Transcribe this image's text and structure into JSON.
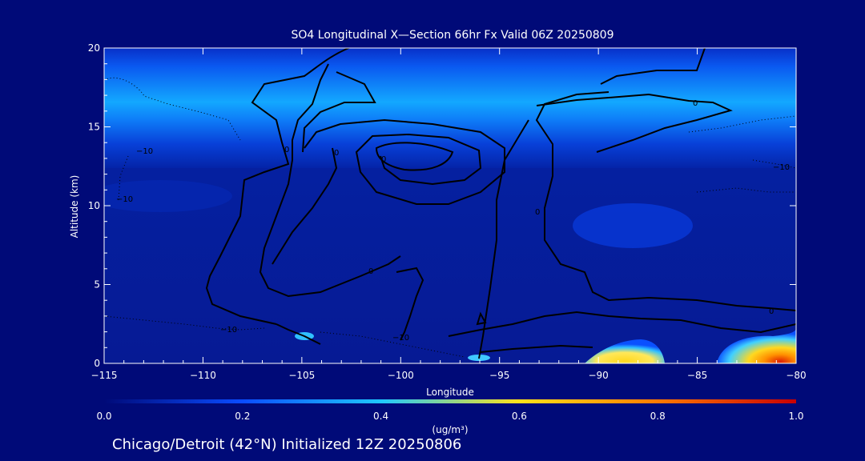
{
  "colors": {
    "background": "#000a78",
    "text": "#ffffff",
    "contour": "#000000"
  },
  "chart_data": {
    "type": "heatmap",
    "title": "SO4 Longitudinal X—Section 66hr  Fx Valid 06Z 20250809",
    "xlabel": "Longitude",
    "ylabel": "Altitude (km)",
    "xlim": [
      -115,
      -80
    ],
    "ylim": [
      0,
      20
    ],
    "x_ticks": [
      -115,
      -110,
      -105,
      -100,
      -95,
      -90,
      -85,
      -80
    ],
    "x_tick_labels": [
      "−115",
      "−110",
      "−105",
      "−100",
      "−95",
      "−90",
      "−85",
      "−80"
    ],
    "y_ticks": [
      0,
      5,
      10,
      15,
      20
    ],
    "y_tick_labels": [
      "0",
      "5",
      "10",
      "15",
      "20"
    ],
    "colorbar": {
      "range": [
        0.0,
        1.0
      ],
      "ticks": [
        0.0,
        0.2,
        0.4,
        0.6,
        0.8,
        1.0
      ],
      "tick_labels": [
        "0.0",
        "0.2",
        "0.4",
        "0.6",
        "0.8",
        "1.0"
      ],
      "units": "(ug/m³)",
      "colors": [
        "#000a78",
        "#0a4cff",
        "#1fc8ff",
        "#ffe21a",
        "#ff7a00",
        "#c80000"
      ]
    },
    "contour_labels": [
      "0",
      "0",
      "0",
      "0",
      "0",
      "0",
      "0",
      "−10",
      "−10",
      "−10",
      "−10",
      "−10"
    ],
    "features": [
      {
        "desc": "upper haze band",
        "lon": [
          -115,
          -80
        ],
        "alt": [
          13.5,
          18
        ],
        "value": 0.25
      },
      {
        "desc": "surface plume",
        "lon": [
          -91,
          -87
        ],
        "alt": [
          0,
          1.5
        ],
        "value": 0.6
      },
      {
        "desc": "surface plume",
        "lon": [
          -84,
          -80
        ],
        "alt": [
          0,
          1.6
        ],
        "value": 0.75
      }
    ]
  },
  "footer": {
    "caption": "Chicago/Detroit (42°N) Initialized 12Z 20250806"
  }
}
